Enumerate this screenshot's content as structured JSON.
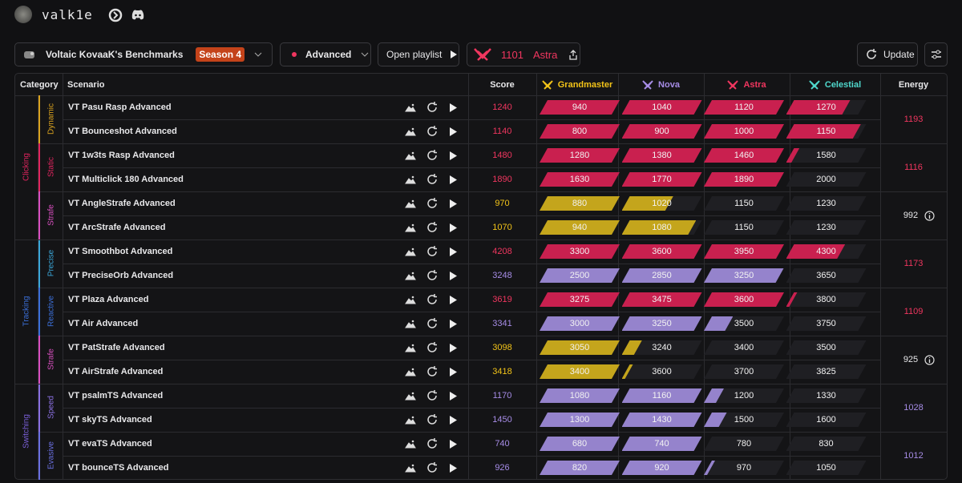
{
  "header": {
    "username": "valk1e"
  },
  "toolbar": {
    "benchmark": "Voltaic KovaaK's Benchmarks",
    "season": "Season 4",
    "difficulty": "Advanced",
    "open_playlist": "Open playlist",
    "rank_score": 1101,
    "rank_name": "Astra",
    "update": "Update"
  },
  "table": {
    "columns": [
      "Category",
      "Scenario",
      "Score",
      "Grandmaster",
      "Nova",
      "Astra",
      "Celestial",
      "Energy"
    ],
    "rank_colors": [
      "#f2c318",
      "#a68ce6",
      "#f0365f",
      "#4fd8cc"
    ],
    "bar_colors": [
      "#c4a51c",
      "#9583cc",
      "#c9204f",
      "#c9204f"
    ],
    "categories": [
      {
        "name": "Clicking",
        "color": "#e0245e",
        "subcategories": [
          {
            "name": "Dynamic",
            "color": "#d9a21f",
            "energy": 1193,
            "energy_color": "#f0365f",
            "info": false,
            "scenarios": [
              {
                "name": "VT Pasu Rasp Advanced",
                "score": 1240,
                "thresholds": [
                  940,
                  1040,
                  1120,
                  1270
                ]
              },
              {
                "name": "VT Bounceshot Advanced",
                "score": 1140,
                "thresholds": [
                  800,
                  900,
                  1000,
                  1150
                ]
              }
            ]
          },
          {
            "name": "Static",
            "color": "#e0245e",
            "energy": 1116,
            "energy_color": "#f0365f",
            "info": false,
            "scenarios": [
              {
                "name": "VT 1w3ts Rasp Advanced",
                "score": 1480,
                "thresholds": [
                  1280,
                  1380,
                  1460,
                  1580
                ]
              },
              {
                "name": "VT Multiclick 180 Advanced",
                "score": 1890,
                "thresholds": [
                  1630,
                  1770,
                  1890,
                  2000
                ]
              }
            ]
          },
          {
            "name": "Strafe",
            "color": "#d94fc0",
            "energy": 992,
            "energy_color": "#e8e8ea",
            "info": true,
            "scenarios": [
              {
                "name": "VT AngleStrafe Advanced",
                "score": 970,
                "thresholds": [
                  880,
                  1020,
                  1150,
                  1230
                ]
              },
              {
                "name": "VT ArcStrafe Advanced",
                "score": 1070,
                "thresholds": [
                  940,
                  1080,
                  1150,
                  1230
                ]
              }
            ]
          }
        ]
      },
      {
        "name": "Tracking",
        "color": "#3b6fd8",
        "subcategories": [
          {
            "name": "Precise",
            "color": "#3aa6d8",
            "energy": 1173,
            "energy_color": "#f0365f",
            "info": false,
            "scenarios": [
              {
                "name": "VT Smoothbot Advanced",
                "score": 4208,
                "thresholds": [
                  3300,
                  3600,
                  3950,
                  4300
                ]
              },
              {
                "name": "VT PreciseOrb Advanced",
                "score": 3248,
                "thresholds": [
                  2500,
                  2850,
                  3250,
                  3650
                ]
              }
            ]
          },
          {
            "name": "Reactive",
            "color": "#3b6fd8",
            "energy": 1109,
            "energy_color": "#f0365f",
            "info": false,
            "scenarios": [
              {
                "name": "VT Plaza Advanced",
                "score": 3619,
                "thresholds": [
                  3275,
                  3475,
                  3600,
                  3800
                ]
              },
              {
                "name": "VT Air Advanced",
                "score": 3341,
                "thresholds": [
                  3000,
                  3250,
                  3500,
                  3750
                ]
              }
            ]
          },
          {
            "name": "Strafe",
            "color": "#d94fc0",
            "energy": 925,
            "energy_color": "#e8e8ea",
            "info": true,
            "scenarios": [
              {
                "name": "VT PatStrafe Advanced",
                "score": 3098,
                "thresholds": [
                  3050,
                  3240,
                  3400,
                  3500
                ]
              },
              {
                "name": "VT AirStrafe Advanced",
                "score": 3418,
                "thresholds": [
                  3400,
                  3600,
                  3700,
                  3825
                ]
              }
            ]
          }
        ]
      },
      {
        "name": "Switching",
        "color": "#7a5fd8",
        "subcategories": [
          {
            "name": "Speed",
            "color": "#8a6fe0",
            "energy": 1028,
            "energy_color": "#a68ce6",
            "info": false,
            "scenarios": [
              {
                "name": "VT psalmTS Advanced",
                "score": 1170,
                "thresholds": [
                  1080,
                  1160,
                  1200,
                  1330
                ]
              },
              {
                "name": "VT skyTS Advanced",
                "score": 1450,
                "thresholds": [
                  1300,
                  1430,
                  1500,
                  1600
                ]
              }
            ]
          },
          {
            "name": "Evasive",
            "color": "#6a6fe0",
            "energy": 1012,
            "energy_color": "#a68ce6",
            "info": false,
            "scenarios": [
              {
                "name": "VT evaTS Advanced",
                "score": 740,
                "thresholds": [
                  680,
                  740,
                  780,
                  830
                ]
              },
              {
                "name": "VT bounceTS Advanced",
                "score": 926,
                "thresholds": [
                  820,
                  920,
                  970,
                  1050
                ]
              }
            ]
          }
        ]
      }
    ]
  }
}
